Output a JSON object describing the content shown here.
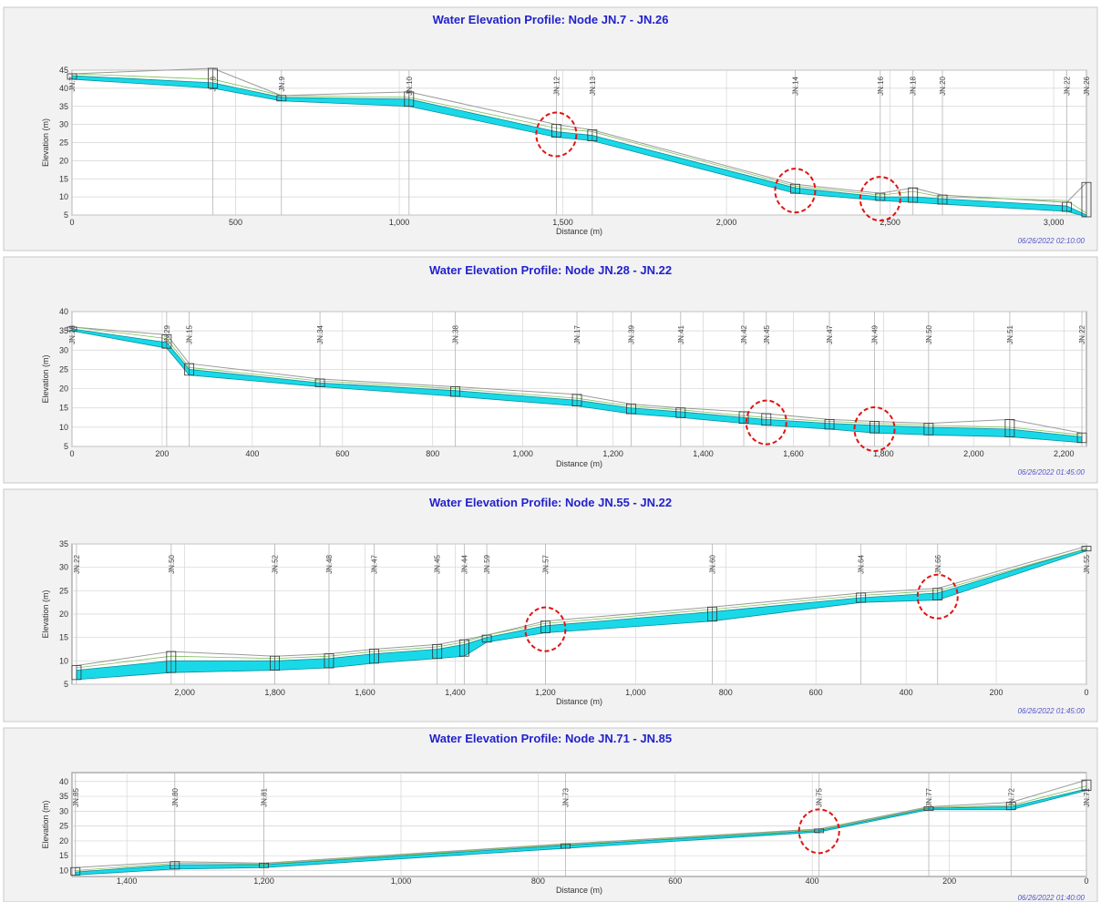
{
  "colors": {
    "title": "#2222cc",
    "fill": "#19d9e8",
    "fill_edge": "#0a8f9c",
    "ground": "#9a9a9a",
    "hgl": "#7fbf5a",
    "grid": "#d4d4d4",
    "highlight": "#e01414",
    "stamp": "#5555cc",
    "panel_bg": "#f2f2f2"
  },
  "chart_data": [
    {
      "type": "area",
      "title": "Water Elevation Profile: Node JN.7 - JN.26",
      "xlabel": "Distance (m)",
      "ylabel": "Elevation (m)",
      "xlim": [
        0,
        3100
      ],
      "ylim": [
        5,
        45
      ],
      "xticks": [
        0,
        500,
        1000,
        1500,
        2000,
        2500,
        3000
      ],
      "xtick_labels": [
        "0",
        "500",
        "1,000",
        "1,500",
        "2,000",
        "2,500",
        "3,000"
      ],
      "yticks": [
        5,
        10,
        15,
        20,
        25,
        30,
        35,
        40,
        45
      ],
      "grid": true,
      "timestamp": "06/26/2022 02:10:00",
      "nodes": [
        "JN.7",
        "JN.8",
        "JN.9",
        "JN.10",
        "JN.12",
        "JN.13",
        "JN.14",
        "JN.16",
        "JN.18",
        "JN.20",
        "JN.22",
        "JN.26"
      ],
      "node_x": [
        0,
        430,
        640,
        1030,
        1480,
        1590,
        2210,
        2470,
        2570,
        2660,
        3040,
        3100
      ],
      "invert": [
        42.5,
        40.0,
        36.5,
        35.0,
        26.5,
        25.5,
        11.0,
        9.0,
        8.5,
        8.0,
        6.0,
        4.5
      ],
      "water": [
        43.5,
        41.5,
        37.5,
        37.0,
        28.0,
        27.0,
        12.5,
        10.0,
        10.0,
        9.5,
        7.5,
        5.0
      ],
      "ground": [
        44.0,
        45.5,
        38.0,
        39.0,
        30.0,
        28.5,
        13.5,
        11.0,
        12.5,
        10.5,
        8.5,
        14.0
      ],
      "hgl": [
        44.0,
        42.5,
        38.0,
        37.5,
        29.0,
        28.0,
        13.0,
        10.5,
        11.5,
        10.0,
        9.0,
        5.5
      ],
      "highlighted_nodes": [
        4,
        6,
        7
      ]
    },
    {
      "type": "area",
      "title": "Water Elevation Profile: Node JN.28 - JN.22",
      "xlabel": "Distance (m)",
      "ylabel": "Elevation (m)",
      "xlim": [
        0,
        2250
      ],
      "ylim": [
        5,
        40
      ],
      "xticks": [
        0,
        200,
        400,
        600,
        800,
        1000,
        1200,
        1400,
        1600,
        1800,
        2000,
        2200
      ],
      "xtick_labels": [
        "0",
        "200",
        "400",
        "600",
        "800",
        "1,000",
        "1,200",
        "1,400",
        "1,600",
        "1,800",
        "2,000",
        "2,200"
      ],
      "yticks": [
        5,
        10,
        15,
        20,
        25,
        30,
        35,
        40
      ],
      "grid": true,
      "timestamp": "06/26/2022 01:45:00",
      "nodes": [
        "JN.28",
        "JN.29",
        "JN.15",
        "JN.34",
        "JN.38",
        "JN.17",
        "JN.39",
        "JN.41",
        "JN.42",
        "JN.45",
        "JN.47",
        "JN.49",
        "JN.50",
        "JN.51",
        "JN.22"
      ],
      "node_x": [
        0,
        210,
        260,
        550,
        850,
        1120,
        1240,
        1350,
        1490,
        1540,
        1680,
        1780,
        1900,
        2080,
        2240
      ],
      "invert": [
        35.0,
        30.5,
        23.5,
        20.5,
        18.0,
        15.5,
        13.5,
        12.5,
        11.0,
        10.5,
        9.5,
        8.5,
        8.0,
        7.5,
        6.0
      ],
      "water": [
        35.5,
        32.0,
        25.0,
        21.5,
        19.5,
        17.0,
        15.0,
        14.0,
        12.5,
        12.0,
        11.0,
        10.5,
        10.0,
        9.5,
        7.5
      ],
      "ground": [
        36.0,
        34.0,
        26.5,
        22.5,
        20.5,
        18.5,
        16.0,
        15.0,
        14.0,
        13.5,
        12.0,
        11.5,
        11.0,
        12.0,
        8.5
      ],
      "hgl": [
        36.0,
        33.0,
        25.5,
        22.0,
        20.0,
        17.5,
        15.5,
        14.5,
        13.0,
        12.5,
        11.5,
        11.0,
        10.5,
        10.0,
        8.0
      ],
      "highlighted_nodes": [
        9,
        11
      ]
    },
    {
      "type": "area",
      "title": "Water Elevation Profile: Node JN.55 - JN.22",
      "xlabel": "Distance (m)",
      "ylabel": "Elevation (m)",
      "xlim": [
        2250,
        0
      ],
      "ylim": [
        5,
        35
      ],
      "xticks": [
        2000,
        1800,
        1600,
        1400,
        1200,
        1000,
        800,
        600,
        400,
        200,
        0
      ],
      "xtick_labels": [
        "2,000",
        "1,800",
        "1,600",
        "1,400",
        "1,200",
        "1,000",
        "800",
        "600",
        "400",
        "200",
        "0"
      ],
      "yticks": [
        5,
        10,
        15,
        20,
        25,
        30,
        35
      ],
      "grid": true,
      "timestamp": "06/26/2022 01:45:00",
      "nodes": [
        "JN.22",
        "JN.50",
        "JN.52",
        "JN.48",
        "JN.47",
        "JN.45",
        "JN.44",
        "JN.59",
        "JN.57",
        "JN.60",
        "JN.64",
        "JN.66",
        "JN.55"
      ],
      "node_x": [
        2240,
        2030,
        1800,
        1680,
        1580,
        1440,
        1380,
        1330,
        1200,
        830,
        500,
        330,
        0
      ],
      "invert": [
        6.0,
        7.5,
        8.0,
        8.5,
        9.5,
        10.5,
        11.0,
        14.0,
        16.0,
        18.5,
        22.5,
        23.0,
        33.5
      ],
      "water": [
        8.0,
        10.0,
        10.0,
        10.5,
        11.5,
        12.5,
        13.5,
        15.0,
        17.5,
        20.5,
        23.5,
        24.5,
        34.0
      ],
      "ground": [
        9.0,
        12.0,
        11.0,
        11.5,
        12.5,
        13.5,
        14.5,
        15.5,
        18.5,
        21.5,
        24.5,
        25.5,
        34.5
      ],
      "hgl": [
        8.5,
        11.0,
        10.5,
        11.0,
        12.0,
        13.0,
        14.0,
        15.5,
        18.0,
        21.0,
        24.0,
        25.0,
        34.0
      ],
      "highlighted_nodes": [
        8,
        11
      ]
    },
    {
      "type": "area",
      "title": "Water Elevation Profile: Node JN.71 - JN.85",
      "xlabel": "Distance (m)",
      "ylabel": "Elevation (m)",
      "xlim": [
        1480,
        0
      ],
      "ylim": [
        8,
        43
      ],
      "xticks": [
        1400,
        1200,
        1000,
        800,
        600,
        400,
        200,
        0
      ],
      "xtick_labels": [
        "1,400",
        "1,200",
        "1,000",
        "800",
        "600",
        "400",
        "200",
        "0"
      ],
      "yticks": [
        10,
        15,
        20,
        25,
        30,
        35,
        40
      ],
      "grid": true,
      "timestamp": "06/26/2022 01:40:00",
      "nodes": [
        "JN.85",
        "JN.80",
        "JN.81",
        "JN.73",
        "JN.75",
        "JN.77",
        "JN.72",
        "JN.71"
      ],
      "node_x": [
        1475,
        1330,
        1200,
        760,
        390,
        230,
        110,
        0
      ],
      "invert": [
        8.5,
        10.5,
        11.0,
        17.5,
        23.0,
        30.5,
        30.5,
        37.0
      ],
      "water": [
        9.5,
        12.0,
        12.0,
        18.5,
        23.5,
        31.0,
        31.5,
        37.5
      ],
      "ground": [
        11.0,
        13.0,
        12.5,
        19.0,
        24.0,
        31.5,
        33.0,
        40.5
      ],
      "hgl": [
        10.0,
        12.5,
        12.2,
        18.8,
        23.8,
        31.2,
        32.0,
        38.5
      ],
      "highlighted_nodes": [
        4
      ]
    }
  ]
}
